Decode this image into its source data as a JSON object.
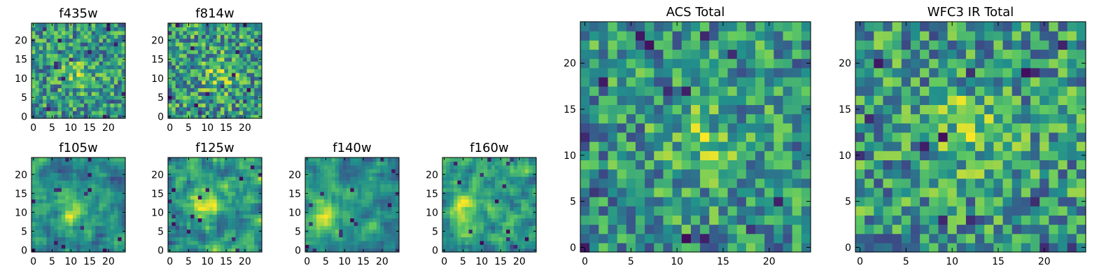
{
  "colormap": [
    "#440154",
    "#3b528b",
    "#21918c",
    "#5ec962",
    "#fde725"
  ],
  "chart_data": [
    {
      "type": "heatmap",
      "title": "f435w",
      "size": 25,
      "xticks": [
        "0",
        "5",
        "10",
        "15",
        "20"
      ],
      "yticks": [
        "0",
        "5",
        "10",
        "15",
        "20"
      ],
      "xlim": [
        -0.5,
        24.5
      ],
      "ylim": [
        -0.5,
        24.5
      ],
      "seed": 11,
      "smooth": 0,
      "peak": [
        12,
        11
      ],
      "grid": false
    },
    {
      "type": "heatmap",
      "title": "f814w",
      "size": 25,
      "xticks": [
        "0",
        "5",
        "10",
        "15",
        "20"
      ],
      "yticks": [
        "0",
        "5",
        "10",
        "15",
        "20"
      ],
      "xlim": [
        -0.5,
        24.5
      ],
      "ylim": [
        -0.5,
        24.5
      ],
      "seed": 23,
      "smooth": 0,
      "peak": [
        13,
        11
      ],
      "grid": false
    },
    {
      "type": "heatmap",
      "title": "f105w",
      "size": 25,
      "xticks": [
        "0",
        "5",
        "10",
        "15",
        "20"
      ],
      "yticks": [
        "0",
        "5",
        "10",
        "15",
        "20"
      ],
      "xlim": [
        -0.5,
        24.5
      ],
      "ylim": [
        -0.5,
        24.5
      ],
      "seed": 37,
      "smooth": 1,
      "peak": [
        11,
        10
      ],
      "grid": false
    },
    {
      "type": "heatmap",
      "title": "f125w",
      "size": 25,
      "xticks": [
        "0",
        "5",
        "10",
        "15",
        "20"
      ],
      "yticks": [
        "0",
        "5",
        "10",
        "15",
        "20"
      ],
      "xlim": [
        -0.5,
        24.5
      ],
      "ylim": [
        -0.5,
        24.5
      ],
      "seed": 41,
      "smooth": 1,
      "peak": [
        10,
        13
      ],
      "grid": false
    },
    {
      "type": "heatmap",
      "title": "f140w",
      "size": 25,
      "xticks": [
        "0",
        "5",
        "10",
        "15",
        "20"
      ],
      "yticks": [
        "0",
        "5",
        "10",
        "15",
        "20"
      ],
      "xlim": [
        -0.5,
        24.5
      ],
      "ylim": [
        -0.5,
        24.5
      ],
      "seed": 53,
      "smooth": 1,
      "peak": [
        5,
        9
      ],
      "grid": false
    },
    {
      "type": "heatmap",
      "title": "f160w",
      "size": 25,
      "xticks": [
        "0",
        "5",
        "10",
        "15",
        "20"
      ],
      "yticks": [
        "0",
        "5",
        "10",
        "15",
        "20"
      ],
      "xlim": [
        -0.5,
        24.5
      ],
      "ylim": [
        -0.5,
        24.5
      ],
      "seed": 67,
      "smooth": 1,
      "peak": [
        5,
        13
      ],
      "grid": false
    },
    {
      "type": "heatmap",
      "title": "ACS Total",
      "size": 25,
      "xticks": [
        "0",
        "5",
        "10",
        "15",
        "20"
      ],
      "yticks": [
        "0",
        "5",
        "10",
        "15",
        "20"
      ],
      "xlim": [
        -0.5,
        24.5
      ],
      "ylim": [
        -0.5,
        24.5
      ],
      "seed": 79,
      "smooth": 0,
      "peak": [
        13,
        11
      ],
      "grid": false
    },
    {
      "type": "heatmap",
      "title": "WFC3 IR Total",
      "size": 25,
      "xticks": [
        "0",
        "5",
        "10",
        "15",
        "20"
      ],
      "yticks": [
        "0",
        "5",
        "10",
        "15",
        "20"
      ],
      "xlim": [
        -0.5,
        24.5
      ],
      "ylim": [
        -0.5,
        24.5
      ],
      "seed": 97,
      "smooth": 0,
      "peak": [
        12,
        13
      ],
      "grid": false
    }
  ]
}
